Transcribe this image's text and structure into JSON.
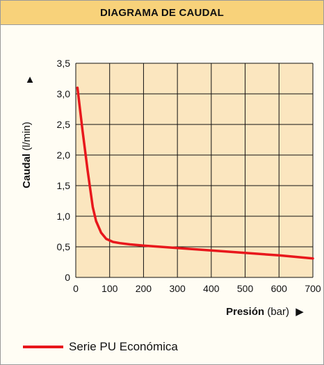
{
  "panel": {
    "title": "DIAGRAMA DE CAUDAL"
  },
  "colors": {
    "plot_background": "#fbe6bf",
    "grid": "#111111",
    "series_line": "#e8171c",
    "header_background": "#f8d27a"
  },
  "chart_data": {
    "type": "line",
    "title": "DIAGRAMA DE CAUDAL",
    "xlabel_bold": "Presión",
    "xlabel_unit": "(bar)",
    "ylabel_bold": "Caudal",
    "ylabel_unit": "(l/min)",
    "x_arrow": "▶",
    "y_arrow": "▲",
    "xlim": [
      0,
      700
    ],
    "ylim": [
      0,
      3.5
    ],
    "x_ticks": [
      "0",
      "100",
      "200",
      "300",
      "400",
      "500",
      "600",
      "700"
    ],
    "y_ticks": [
      "0",
      "0,5",
      "1,0",
      "1,5",
      "2,0",
      "2,5",
      "3,0",
      "3,5"
    ],
    "grid": true,
    "legend_position": "bottom-left",
    "series": [
      {
        "name": "Serie PU Económica",
        "x": [
          5,
          20,
          35,
          50,
          60,
          75,
          90,
          110,
          130,
          160,
          200,
          250,
          300,
          400,
          500,
          600,
          700
        ],
        "y": [
          3.1,
          2.4,
          1.75,
          1.15,
          0.92,
          0.73,
          0.63,
          0.58,
          0.56,
          0.54,
          0.52,
          0.5,
          0.48,
          0.44,
          0.4,
          0.36,
          0.31
        ]
      }
    ]
  }
}
